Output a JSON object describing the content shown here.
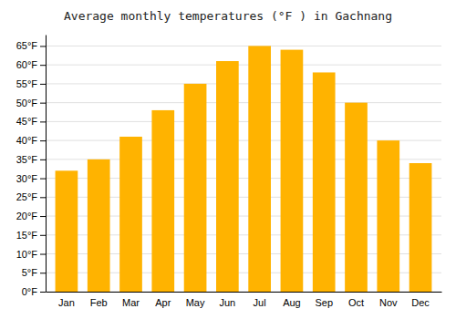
{
  "chart_data": {
    "type": "bar",
    "title": "Average monthly temperatures (°F ) in Gachnang",
    "categories": [
      "Jan",
      "Feb",
      "Mar",
      "Apr",
      "May",
      "Jun",
      "Jul",
      "Aug",
      "Sep",
      "Oct",
      "Nov",
      "Dec"
    ],
    "values": [
      32,
      35,
      41,
      48,
      55,
      61,
      65,
      64,
      58,
      50,
      40,
      34
    ],
    "color": "#FFB300",
    "ylim": [
      0,
      68
    ],
    "yticks": [
      {
        "value": 0,
        "label": "0°F"
      },
      {
        "value": 5,
        "label": "5°F"
      },
      {
        "value": 10,
        "label": "10°F"
      },
      {
        "value": 15,
        "label": "15°F"
      },
      {
        "value": 20,
        "label": "20°F"
      },
      {
        "value": 25,
        "label": "25°F"
      },
      {
        "value": 30,
        "label": "30°F"
      },
      {
        "value": 35,
        "label": "35°F"
      },
      {
        "value": 40,
        "label": "40°F"
      },
      {
        "value": 45,
        "label": "45°F"
      },
      {
        "value": 50,
        "label": "50°F"
      },
      {
        "value": 55,
        "label": "55°F"
      },
      {
        "value": 60,
        "label": "60°F"
      },
      {
        "value": 65,
        "label": "65°F"
      }
    ],
    "grid": true
  }
}
